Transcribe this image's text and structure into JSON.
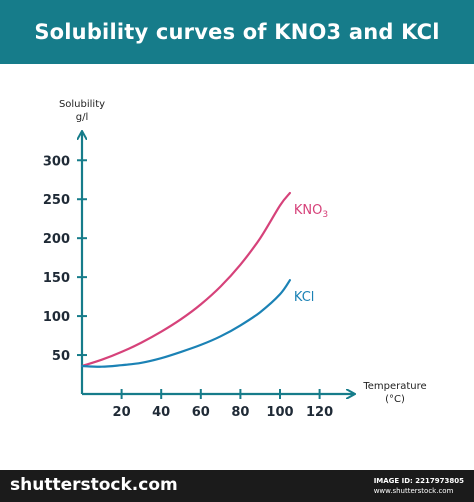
{
  "colors": {
    "header_bg": "#167c8a",
    "axis": "#167c8a",
    "kno3": "#d6427a",
    "kcl": "#1b82b5",
    "footer_bg": "#1b1b1b"
  },
  "header": {
    "title": "Solubility curves of KNO3 and KCl"
  },
  "chart_data": {
    "type": "line",
    "title": "Solubility curves of KNO3 and KCl",
    "ylabel_line1": "Solubility",
    "ylabel_line2": "g/l",
    "xlabel_line1": "Temperature",
    "xlabel_line2": "(°C)",
    "xlim": [
      0,
      140
    ],
    "ylim": [
      0,
      340
    ],
    "x_ticks": [
      20,
      40,
      60,
      80,
      100,
      120
    ],
    "y_ticks": [
      50,
      100,
      150,
      200,
      250,
      300
    ],
    "grid": false,
    "series": [
      {
        "name": "KNO3",
        "label_main": "KNO",
        "label_sub": "3",
        "x": [
          0,
          10,
          20,
          30,
          40,
          50,
          60,
          70,
          80,
          90,
          100,
          105
        ],
        "y": [
          36,
          44,
          54,
          66,
          80,
          96,
          115,
          138,
          166,
          200,
          242,
          258
        ]
      },
      {
        "name": "KCl",
        "label_main": "KCl",
        "label_sub": "",
        "x": [
          0,
          10,
          20,
          30,
          40,
          50,
          60,
          70,
          80,
          90,
          100,
          105
        ],
        "y": [
          36,
          35,
          37,
          40,
          46,
          54,
          63,
          74,
          88,
          105,
          128,
          146
        ]
      }
    ]
  },
  "footer": {
    "brand": "shutterstock.com",
    "image_id_label": "IMAGE ID: 2217973805",
    "site": "www.shutterstock.com"
  }
}
